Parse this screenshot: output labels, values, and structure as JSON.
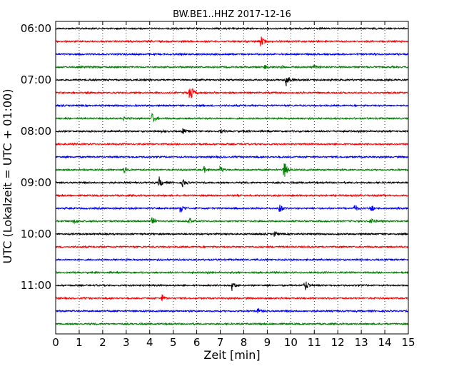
{
  "chart_data": {
    "type": "line",
    "subtype": "dayplot",
    "title": "BW.BE1..HHZ 2017-12-16",
    "xlabel": "Zeit  [min]",
    "ylabel": "UTC (Lokalzeit = UTC + 01:00)",
    "xlim": [
      0,
      15
    ],
    "x_ticks": [
      "0",
      "1",
      "2",
      "3",
      "4",
      "5",
      "6",
      "7",
      "8",
      "9",
      "10",
      "11",
      "12",
      "13",
      "14",
      "15"
    ],
    "y_ticks": [
      "06:00",
      "07:00",
      "08:00",
      "09:00",
      "10:00",
      "11:00"
    ],
    "vertical_grid": "dotted",
    "trace_interval_min": 15,
    "trace_colors": [
      "#000000",
      "#ff0000",
      "#0000ff",
      "#008000"
    ],
    "series": [
      {
        "start": "06:00",
        "color": "#000000",
        "events": []
      },
      {
        "start": "06:15",
        "color": "#ff0000",
        "events": [
          [
            8.7,
            9
          ]
        ]
      },
      {
        "start": "06:30",
        "color": "#0000ff",
        "events": []
      },
      {
        "start": "06:45",
        "color": "#008000",
        "events": [
          [
            1.6,
            2
          ],
          [
            8.9,
            3
          ],
          [
            9.6,
            2
          ],
          [
            11.0,
            3
          ]
        ]
      },
      {
        "start": "07:00",
        "color": "#000000",
        "events": [
          [
            9.8,
            11
          ]
        ]
      },
      {
        "start": "07:15",
        "color": "#ff0000",
        "events": [
          [
            5.7,
            16
          ]
        ]
      },
      {
        "start": "07:30",
        "color": "#0000ff",
        "events": []
      },
      {
        "start": "07:45",
        "color": "#008000",
        "events": [
          [
            2.9,
            3
          ],
          [
            4.1,
            7
          ]
        ]
      },
      {
        "start": "08:00",
        "color": "#000000",
        "events": [
          [
            4.5,
            2
          ],
          [
            5.4,
            4
          ],
          [
            7.0,
            3
          ],
          [
            8.0,
            2
          ]
        ]
      },
      {
        "start": "08:15",
        "color": "#ff0000",
        "events": []
      },
      {
        "start": "08:30",
        "color": "#0000ff",
        "events": []
      },
      {
        "start": "08:45",
        "color": "#008000",
        "events": [
          [
            2.9,
            5
          ],
          [
            6.3,
            5
          ],
          [
            7.0,
            6
          ],
          [
            9.7,
            14
          ]
        ]
      },
      {
        "start": "09:00",
        "color": "#000000",
        "events": [
          [
            4.4,
            8
          ],
          [
            5.4,
            6
          ]
        ]
      },
      {
        "start": "09:15",
        "color": "#ff0000",
        "events": []
      },
      {
        "start": "09:30",
        "color": "#0000ff",
        "events": [
          [
            5.3,
            8
          ],
          [
            9.5,
            7
          ],
          [
            12.7,
            7
          ],
          [
            13.4,
            6
          ]
        ]
      },
      {
        "start": "09:45",
        "color": "#008000",
        "events": [
          [
            0.8,
            3
          ],
          [
            4.1,
            5
          ],
          [
            5.7,
            4
          ],
          [
            13.4,
            7
          ]
        ]
      },
      {
        "start": "10:00",
        "color": "#000000",
        "events": [
          [
            9.3,
            4
          ]
        ]
      },
      {
        "start": "10:15",
        "color": "#ff0000",
        "events": []
      },
      {
        "start": "10:30",
        "color": "#0000ff",
        "events": []
      },
      {
        "start": "10:45",
        "color": "#008000",
        "events": []
      },
      {
        "start": "11:00",
        "color": "#000000",
        "events": [
          [
            7.5,
            7
          ],
          [
            10.6,
            10
          ]
        ]
      },
      {
        "start": "11:15",
        "color": "#ff0000",
        "events": [
          [
            4.5,
            6
          ]
        ]
      },
      {
        "start": "11:30",
        "color": "#0000ff",
        "events": [
          [
            8.6,
            4
          ]
        ]
      },
      {
        "start": "11:45",
        "color": "#008000",
        "events": []
      }
    ]
  }
}
